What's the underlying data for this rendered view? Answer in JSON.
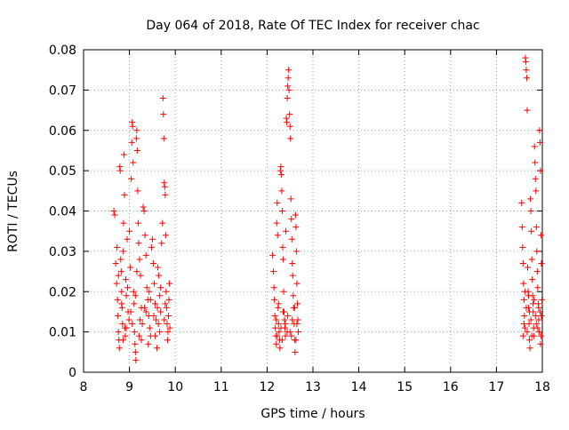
{
  "chart_data": {
    "type": "scatter",
    "title": "Day 064 of 2018, Rate Of TEC Index for receiver chac",
    "xlabel": "GPS time / hours",
    "ylabel": "ROTI / TECUs",
    "xlim": [
      8,
      18
    ],
    "ylim": [
      0,
      0.08
    ],
    "x_ticks": [
      "8",
      "9",
      "10",
      "11",
      "12",
      "13",
      "14",
      "15",
      "16",
      "17",
      "18"
    ],
    "y_ticks": [
      "0",
      "0.01",
      "0.02",
      "0.03",
      "0.04",
      "0.05",
      "0.06",
      "0.07",
      "0.08"
    ],
    "grid": true,
    "legend": "none",
    "marker": "+",
    "color": "#ff0000",
    "series": [
      {
        "points": [
          [
            8.66,
            0.04
          ],
          [
            8.68,
            0.039
          ],
          [
            8.7,
            0.027
          ],
          [
            8.72,
            0.022
          ],
          [
            8.74,
            0.018
          ],
          [
            8.75,
            0.014
          ],
          [
            8.76,
            0.01
          ],
          [
            8.77,
            0.008
          ],
          [
            8.78,
            0.006
          ],
          [
            8.79,
            0.051
          ],
          [
            8.8,
            0.05
          ],
          [
            8.81,
            0.028
          ],
          [
            8.82,
            0.025
          ],
          [
            8.83,
            0.02
          ],
          [
            8.84,
            0.016
          ],
          [
            8.85,
            0.012
          ],
          [
            8.86,
            0.03
          ],
          [
            8.87,
            0.037
          ],
          [
            8.88,
            0.054
          ],
          [
            8.89,
            0.044
          ],
          [
            8.9,
            0.011
          ],
          [
            8.91,
            0.009
          ],
          [
            8.92,
            0.023
          ],
          [
            8.93,
            0.019
          ],
          [
            8.95,
            0.033
          ],
          [
            8.97,
            0.015
          ],
          [
            8.99,
            0.013
          ],
          [
            9.0,
            0.035
          ],
          [
            9.02,
            0.026
          ],
          [
            9.04,
            0.048
          ],
          [
            9.05,
            0.057
          ],
          [
            9.06,
            0.062
          ],
          [
            9.07,
            0.061
          ],
          [
            9.08,
            0.052
          ],
          [
            9.09,
            0.02
          ],
          [
            9.1,
            0.017
          ],
          [
            9.11,
            0.01
          ],
          [
            9.12,
            0.007
          ],
          [
            9.13,
            0.005
          ],
          [
            9.14,
            0.003
          ],
          [
            9.15,
            0.058
          ],
          [
            9.16,
            0.06
          ],
          [
            9.17,
            0.055
          ],
          [
            9.18,
            0.045
          ],
          [
            9.19,
            0.037
          ],
          [
            9.2,
            0.032
          ],
          [
            9.22,
            0.028
          ],
          [
            9.24,
            0.024
          ],
          [
            9.26,
            0.016
          ],
          [
            9.28,
            0.012
          ],
          [
            9.3,
            0.041
          ],
          [
            9.32,
            0.04
          ],
          [
            9.34,
            0.034
          ],
          [
            9.36,
            0.029
          ],
          [
            9.38,
            0.021
          ],
          [
            9.4,
            0.018
          ],
          [
            9.42,
            0.014
          ],
          [
            9.44,
            0.011
          ],
          [
            9.46,
            0.009
          ],
          [
            9.48,
            0.031
          ],
          [
            9.5,
            0.033
          ],
          [
            9.52,
            0.027
          ],
          [
            9.54,
            0.022
          ],
          [
            9.56,
            0.017
          ],
          [
            9.58,
            0.013
          ],
          [
            9.6,
            0.006
          ],
          [
            9.62,
            0.026
          ],
          [
            9.64,
            0.024
          ],
          [
            9.66,
            0.019
          ],
          [
            9.68,
            0.015
          ],
          [
            9.7,
            0.032
          ],
          [
            9.72,
            0.037
          ],
          [
            9.73,
            0.068
          ],
          [
            9.74,
            0.064
          ],
          [
            9.75,
            0.058
          ],
          [
            9.76,
            0.047
          ],
          [
            9.77,
            0.046
          ],
          [
            9.78,
            0.044
          ],
          [
            9.79,
            0.034
          ],
          [
            9.8,
            0.02
          ],
          [
            9.81,
            0.016
          ],
          [
            9.82,
            0.012
          ],
          [
            9.83,
            0.008
          ],
          [
            9.84,
            0.01
          ],
          [
            9.85,
            0.014
          ],
          [
            9.86,
            0.018
          ],
          [
            9.87,
            0.022
          ],
          [
            9.88,
            0.011
          ],
          [
            8.73,
            0.031
          ],
          [
            8.83,
            0.017
          ],
          [
            8.93,
            0.011
          ],
          [
            9.03,
            0.015
          ],
          [
            9.13,
            0.019
          ],
          [
            9.23,
            0.013
          ],
          [
            9.33,
            0.016
          ],
          [
            9.43,
            0.02
          ],
          [
            9.53,
            0.014
          ],
          [
            9.63,
            0.012
          ],
          [
            9.68,
            0.021
          ],
          [
            9.78,
            0.017
          ],
          [
            8.76,
            0.024
          ],
          [
            8.96,
            0.021
          ],
          [
            9.16,
            0.025
          ],
          [
            9.36,
            0.015
          ],
          [
            9.56,
            0.009
          ],
          [
            9.76,
            0.013
          ],
          [
            9.21,
            0.009
          ],
          [
            9.41,
            0.007
          ],
          [
            9.61,
            0.016
          ],
          [
            8.86,
            0.008
          ],
          [
            9.06,
            0.012
          ],
          [
            9.26,
            0.008
          ],
          [
            9.46,
            0.018
          ],
          [
            9.66,
            0.01
          ]
        ]
      },
      {
        "points": [
          [
            12.12,
            0.029
          ],
          [
            12.14,
            0.025
          ],
          [
            12.15,
            0.021
          ],
          [
            12.16,
            0.018
          ],
          [
            12.17,
            0.014
          ],
          [
            12.18,
            0.011
          ],
          [
            12.19,
            0.009
          ],
          [
            12.2,
            0.007
          ],
          [
            12.21,
            0.037
          ],
          [
            12.22,
            0.042
          ],
          [
            12.23,
            0.034
          ],
          [
            12.24,
            0.016
          ],
          [
            12.25,
            0.012
          ],
          [
            12.26,
            0.01
          ],
          [
            12.27,
            0.008
          ],
          [
            12.28,
            0.006
          ],
          [
            12.29,
            0.05
          ],
          [
            12.3,
            0.051
          ],
          [
            12.31,
            0.049
          ],
          [
            12.32,
            0.045
          ],
          [
            12.33,
            0.04
          ],
          [
            12.34,
            0.031
          ],
          [
            12.35,
            0.028
          ],
          [
            12.36,
            0.02
          ],
          [
            12.37,
            0.015
          ],
          [
            12.38,
            0.013
          ],
          [
            12.39,
            0.011
          ],
          [
            12.4,
            0.009
          ],
          [
            12.41,
            0.035
          ],
          [
            12.42,
            0.063
          ],
          [
            12.43,
            0.062
          ],
          [
            12.44,
            0.068
          ],
          [
            12.45,
            0.071
          ],
          [
            12.46,
            0.073
          ],
          [
            12.47,
            0.075
          ],
          [
            12.48,
            0.07
          ],
          [
            12.49,
            0.064
          ],
          [
            12.5,
            0.061
          ],
          [
            12.51,
            0.058
          ],
          [
            12.52,
            0.043
          ],
          [
            12.53,
            0.038
          ],
          [
            12.54,
            0.033
          ],
          [
            12.55,
            0.027
          ],
          [
            12.56,
            0.024
          ],
          [
            12.57,
            0.019
          ],
          [
            12.58,
            0.016
          ],
          [
            12.59,
            0.012
          ],
          [
            12.6,
            0.008
          ],
          [
            12.61,
            0.005
          ],
          [
            12.62,
            0.039
          ],
          [
            12.63,
            0.036
          ],
          [
            12.64,
            0.03
          ],
          [
            12.65,
            0.022
          ],
          [
            12.66,
            0.017
          ],
          [
            12.67,
            0.013
          ],
          [
            12.68,
            0.01
          ],
          [
            12.2,
            0.013
          ],
          [
            12.25,
            0.017
          ],
          [
            12.3,
            0.011
          ],
          [
            12.35,
            0.015
          ],
          [
            12.4,
            0.012
          ],
          [
            12.45,
            0.014
          ],
          [
            12.5,
            0.01
          ],
          [
            12.55,
            0.013
          ],
          [
            12.6,
            0.016
          ],
          [
            12.65,
            0.012
          ],
          [
            12.22,
            0.009
          ],
          [
            12.33,
            0.008
          ],
          [
            12.44,
            0.01
          ],
          [
            12.53,
            0.009
          ],
          [
            12.63,
            0.008
          ]
        ]
      },
      {
        "points": [
          [
            17.55,
            0.042
          ],
          [
            17.56,
            0.036
          ],
          [
            17.57,
            0.031
          ],
          [
            17.58,
            0.027
          ],
          [
            17.59,
            0.022
          ],
          [
            17.6,
            0.018
          ],
          [
            17.61,
            0.014
          ],
          [
            17.62,
            0.011
          ],
          [
            17.63,
            0.078
          ],
          [
            17.64,
            0.077
          ],
          [
            17.65,
            0.075
          ],
          [
            17.66,
            0.073
          ],
          [
            17.67,
            0.065
          ],
          [
            17.68,
            0.026
          ],
          [
            17.69,
            0.02
          ],
          [
            17.7,
            0.016
          ],
          [
            17.71,
            0.012
          ],
          [
            17.72,
            0.008
          ],
          [
            17.73,
            0.006
          ],
          [
            17.74,
            0.043
          ],
          [
            17.75,
            0.04
          ],
          [
            17.76,
            0.035
          ],
          [
            17.77,
            0.028
          ],
          [
            17.78,
            0.023
          ],
          [
            17.79,
            0.019
          ],
          [
            17.8,
            0.015
          ],
          [
            17.81,
            0.011
          ],
          [
            17.82,
            0.009
          ],
          [
            17.83,
            0.056
          ],
          [
            17.84,
            0.052
          ],
          [
            17.85,
            0.048
          ],
          [
            17.86,
            0.045
          ],
          [
            17.87,
            0.036
          ],
          [
            17.88,
            0.03
          ],
          [
            17.89,
            0.025
          ],
          [
            17.9,
            0.021
          ],
          [
            17.91,
            0.017
          ],
          [
            17.92,
            0.013
          ],
          [
            17.93,
            0.01
          ],
          [
            17.94,
            0.06
          ],
          [
            17.95,
            0.057
          ],
          [
            17.96,
            0.05
          ],
          [
            17.97,
            0.034
          ],
          [
            17.98,
            0.027
          ],
          [
            17.99,
            0.018
          ],
          [
            17.98,
            0.014
          ],
          [
            17.97,
            0.009
          ],
          [
            17.96,
            0.007
          ],
          [
            17.6,
            0.012
          ],
          [
            17.65,
            0.016
          ],
          [
            17.7,
            0.019
          ],
          [
            17.75,
            0.013
          ],
          [
            17.8,
            0.017
          ],
          [
            17.85,
            0.014
          ],
          [
            17.9,
            0.011
          ],
          [
            17.95,
            0.015
          ],
          [
            17.62,
            0.02
          ],
          [
            17.72,
            0.015
          ],
          [
            17.82,
            0.018
          ],
          [
            17.92,
            0.016
          ],
          [
            17.67,
            0.01
          ],
          [
            17.77,
            0.009
          ],
          [
            17.87,
            0.012
          ],
          [
            17.58,
            0.009
          ]
        ]
      }
    ]
  }
}
